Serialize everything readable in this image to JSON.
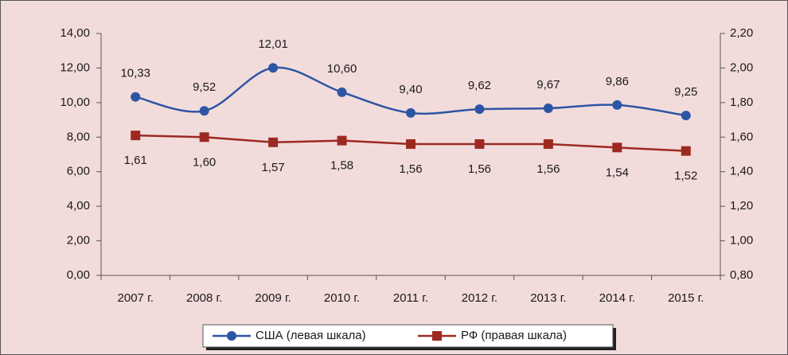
{
  "chart_data": {
    "type": "line",
    "categories": [
      "2007 г.",
      "2008 г.",
      "2009 г.",
      "2010 г.",
      "2011 г.",
      "2012 г.",
      "2013 г.",
      "2014 г.",
      "2015 г."
    ],
    "series": [
      {
        "name": "США (левая шкала)",
        "color": "#2e55a4",
        "marker": "circle",
        "smooth": true,
        "values": [
          10.33,
          9.52,
          12.01,
          10.6,
          9.4,
          9.62,
          9.67,
          9.86,
          9.25
        ],
        "value_labels": [
          "10,33",
          "9,52",
          "12,01",
          "10,60",
          "9,40",
          "9,62",
          "9,67",
          "9,86",
          "9,25"
        ]
      },
      {
        "name": "РФ (правая шкала)",
        "color": "#9c2a21",
        "marker": "square",
        "axis": "y2",
        "values": [
          1.61,
          1.6,
          1.57,
          1.58,
          1.56,
          1.56,
          1.56,
          1.54,
          1.52
        ],
        "value_labels": [
          "1,61",
          "1,60",
          "1,57",
          "1,58",
          "1,56",
          "1,56",
          "1,56",
          "1,54",
          "1,52"
        ]
      }
    ],
    "ylim": [
      0,
      14
    ],
    "yticks": [
      {
        "value": 0,
        "label": "0,00"
      },
      {
        "value": 2,
        "label": "2,00"
      },
      {
        "value": 4,
        "label": "4,00"
      },
      {
        "value": 6,
        "label": "6,00"
      },
      {
        "value": 8,
        "label": "8,00"
      },
      {
        "value": 10,
        "label": "10,00"
      },
      {
        "value": 12,
        "label": "12,00"
      },
      {
        "value": 14,
        "label": "14,00"
      }
    ],
    "y2lim": [
      0.8,
      2.2
    ],
    "y2ticks": [
      {
        "value": 0.8,
        "label": "0,80"
      },
      {
        "value": 1.0,
        "label": "1,00"
      },
      {
        "value": 1.2,
        "label": "1,20"
      },
      {
        "value": 1.4,
        "label": "1,40"
      },
      {
        "value": 1.6,
        "label": "1,60"
      },
      {
        "value": 1.8,
        "label": "1,80"
      },
      {
        "value": 2.0,
        "label": "2,00"
      },
      {
        "value": 2.2,
        "label": "2,20"
      }
    ],
    "legend": "bottom"
  }
}
